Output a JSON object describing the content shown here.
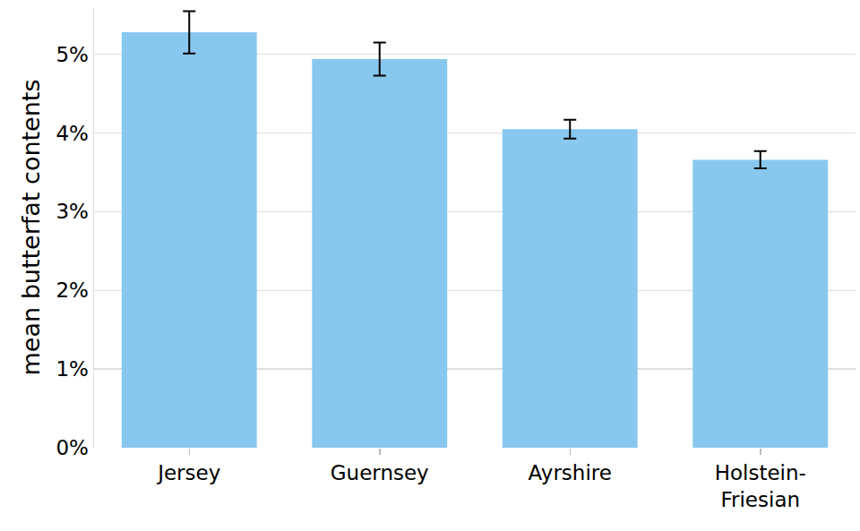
{
  "chart_data": {
    "type": "bar",
    "y_label": "mean butterfat contents",
    "categories": [
      "Jersey",
      "Guernsey",
      "Ayrshire",
      "Holstein-\nFriesian"
    ],
    "values": [
      5.28,
      4.94,
      4.05,
      3.66
    ],
    "errors": [
      0.27,
      0.21,
      0.12,
      0.11
    ],
    "color": "#88c8ee",
    "ylim": [
      0,
      5.6
    ],
    "yticks": [
      {
        "value": 0,
        "label": "0%"
      },
      {
        "value": 1,
        "label": "1%"
      },
      {
        "value": 2,
        "label": "2%"
      },
      {
        "value": 3,
        "label": "3%"
      },
      {
        "value": 4,
        "label": "4%"
      },
      {
        "value": 5,
        "label": "5%"
      }
    ],
    "grid": true
  }
}
